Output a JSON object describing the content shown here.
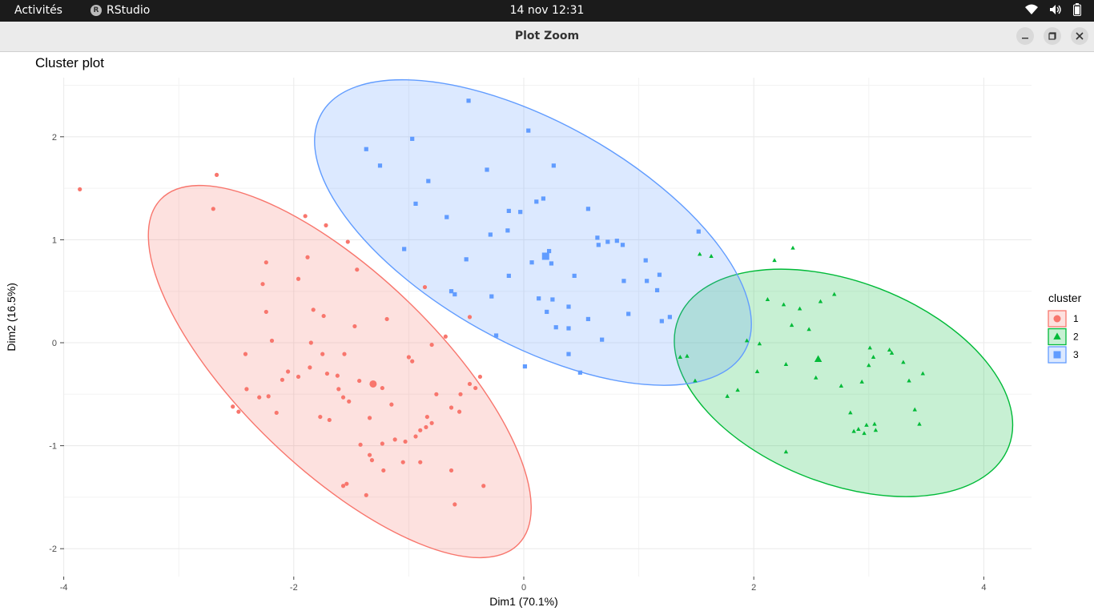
{
  "topbar": {
    "activities": "Activités",
    "app_name": "RStudio",
    "clock": "14 nov  12:31"
  },
  "window": {
    "title": "Plot Zoom"
  },
  "chart_data": {
    "type": "scatter",
    "title": "Cluster plot",
    "xlabel": "Dim1 (70.1%)",
    "ylabel": "Dim2 (16.5%)",
    "xlim": [
      -4.2,
      4.4
    ],
    "ylim": [
      -2.25,
      2.5
    ],
    "xticks": [
      -4,
      -2,
      0,
      2,
      4
    ],
    "yticks": [
      -2,
      -1,
      0,
      1,
      2
    ],
    "grid": true,
    "legend": {
      "title": "cluster",
      "position": "right",
      "entries": [
        "1",
        "2",
        "3"
      ]
    },
    "colors": {
      "1": "#F8766D",
      "2": "#00BA38",
      "3": "#619CFF"
    },
    "ellipses": [
      {
        "cluster": "1",
        "cx": -1.6,
        "cy": -0.28,
        "rx": 2.16,
        "ry": 0.95,
        "angle_deg": -43.9
      },
      {
        "cluster": "2",
        "cx": 2.78,
        "cy": -0.39,
        "rx": 1.54,
        "ry": 0.98,
        "angle_deg": -21.1
      },
      {
        "cluster": "3",
        "cx": 0.08,
        "cy": 1.07,
        "rx": 2.11,
        "ry": 1.07,
        "angle_deg": -29.3
      }
    ],
    "series": [
      {
        "name": "1",
        "shape": "circle",
        "center": [
          -1.31,
          -0.4
        ],
        "points": [
          [
            -3.86,
            1.49
          ],
          [
            -2.67,
            1.63
          ],
          [
            -2.7,
            1.3
          ],
          [
            -1.9,
            1.23
          ],
          [
            -1.72,
            1.14
          ],
          [
            -1.53,
            0.98
          ],
          [
            -2.24,
            0.78
          ],
          [
            -1.88,
            0.83
          ],
          [
            -1.45,
            0.71
          ],
          [
            -2.27,
            0.57
          ],
          [
            -1.96,
            0.62
          ],
          [
            -0.86,
            0.54
          ],
          [
            -1.83,
            0.32
          ],
          [
            -2.24,
            0.3
          ],
          [
            -1.74,
            0.26
          ],
          [
            -1.19,
            0.23
          ],
          [
            -0.47,
            0.25
          ],
          [
            -1.47,
            0.16
          ],
          [
            -0.68,
            0.06
          ],
          [
            -2.19,
            0.02
          ],
          [
            -1.85,
            0.0
          ],
          [
            -0.8,
            -0.02
          ],
          [
            -2.42,
            -0.11
          ],
          [
            -1.75,
            -0.11
          ],
          [
            -1.56,
            -0.11
          ],
          [
            -1.0,
            -0.14
          ],
          [
            -0.97,
            -0.18
          ],
          [
            -1.86,
            -0.24
          ],
          [
            -1.71,
            -0.3
          ],
          [
            -2.05,
            -0.28
          ],
          [
            -1.96,
            -0.33
          ],
          [
            -2.1,
            -0.36
          ],
          [
            -1.62,
            -0.32
          ],
          [
            -0.38,
            -0.33
          ],
          [
            -1.43,
            -0.37
          ],
          [
            -0.47,
            -0.4
          ],
          [
            -2.41,
            -0.45
          ],
          [
            -1.61,
            -0.45
          ],
          [
            -1.23,
            -0.44
          ],
          [
            -0.42,
            -0.44
          ],
          [
            -0.55,
            -0.5
          ],
          [
            -2.3,
            -0.53
          ],
          [
            -2.22,
            -0.52
          ],
          [
            -1.52,
            -0.57
          ],
          [
            -1.57,
            -0.53
          ],
          [
            -0.76,
            -0.5
          ],
          [
            -0.63,
            -0.63
          ],
          [
            -1.15,
            -0.6
          ],
          [
            -0.56,
            -0.67
          ],
          [
            -0.84,
            -0.72
          ],
          [
            -1.77,
            -0.72
          ],
          [
            -1.34,
            -0.73
          ],
          [
            -2.53,
            -0.62
          ],
          [
            -2.48,
            -0.67
          ],
          [
            -2.15,
            -0.68
          ],
          [
            -1.69,
            -0.75
          ],
          [
            -0.8,
            -0.78
          ],
          [
            -0.85,
            -0.82
          ],
          [
            -0.9,
            -0.85
          ],
          [
            -0.94,
            -0.91
          ],
          [
            -1.12,
            -0.94
          ],
          [
            -1.03,
            -0.96
          ],
          [
            -1.42,
            -0.99
          ],
          [
            -1.23,
            -0.98
          ],
          [
            -1.34,
            -1.09
          ],
          [
            -1.32,
            -1.14
          ],
          [
            -1.05,
            -1.16
          ],
          [
            -0.9,
            -1.16
          ],
          [
            -0.63,
            -1.24
          ],
          [
            -1.22,
            -1.24
          ],
          [
            -1.54,
            -1.37
          ],
          [
            -1.57,
            -1.39
          ],
          [
            -1.37,
            -1.48
          ],
          [
            -0.6,
            -1.57
          ],
          [
            -0.35,
            -1.39
          ]
        ]
      },
      {
        "name": "2",
        "shape": "triangle",
        "center": [
          2.56,
          -0.16
        ],
        "points": [
          [
            1.53,
            0.86
          ],
          [
            1.63,
            0.84
          ],
          [
            2.34,
            0.92
          ],
          [
            2.18,
            0.8
          ],
          [
            2.12,
            0.42
          ],
          [
            2.26,
            0.37
          ],
          [
            2.4,
            0.33
          ],
          [
            2.58,
            0.4
          ],
          [
            2.7,
            0.47
          ],
          [
            2.33,
            0.17
          ],
          [
            2.48,
            0.13
          ],
          [
            1.94,
            0.02
          ],
          [
            2.05,
            -0.01
          ],
          [
            1.42,
            -0.13
          ],
          [
            1.36,
            -0.14
          ],
          [
            3.01,
            -0.05
          ],
          [
            3.18,
            -0.07
          ],
          [
            3.2,
            -0.1
          ],
          [
            3.04,
            -0.14
          ],
          [
            3.3,
            -0.19
          ],
          [
            3.0,
            -0.22
          ],
          [
            2.28,
            -0.21
          ],
          [
            2.03,
            -0.28
          ],
          [
            3.47,
            -0.3
          ],
          [
            2.54,
            -0.34
          ],
          [
            1.49,
            -0.37
          ],
          [
            3.35,
            -0.37
          ],
          [
            2.94,
            -0.38
          ],
          [
            2.76,
            -0.42
          ],
          [
            1.86,
            -0.46
          ],
          [
            1.77,
            -0.52
          ],
          [
            3.4,
            -0.65
          ],
          [
            2.84,
            -0.68
          ],
          [
            3.05,
            -0.79
          ],
          [
            2.98,
            -0.8
          ],
          [
            3.06,
            -0.85
          ],
          [
            2.91,
            -0.84
          ],
          [
            3.44,
            -0.79
          ],
          [
            2.87,
            -0.86
          ],
          [
            2.96,
            -0.88
          ],
          [
            2.28,
            -1.06
          ]
        ]
      },
      {
        "name": "3",
        "shape": "square",
        "center": [
          0.19,
          0.84
        ],
        "points": [
          [
            -0.48,
            2.35
          ],
          [
            0.04,
            2.06
          ],
          [
            -0.97,
            1.98
          ],
          [
            -1.37,
            1.88
          ],
          [
            0.26,
            1.72
          ],
          [
            -1.25,
            1.72
          ],
          [
            -0.32,
            1.68
          ],
          [
            -0.83,
            1.57
          ],
          [
            0.17,
            1.4
          ],
          [
            0.11,
            1.37
          ],
          [
            -0.94,
            1.35
          ],
          [
            -0.13,
            1.28
          ],
          [
            -0.03,
            1.27
          ],
          [
            0.56,
            1.3
          ],
          [
            -0.67,
            1.22
          ],
          [
            -0.14,
            1.09
          ],
          [
            -0.29,
            1.05
          ],
          [
            0.64,
            1.02
          ],
          [
            0.81,
            0.99
          ],
          [
            0.73,
            0.98
          ],
          [
            0.65,
            0.95
          ],
          [
            0.86,
            0.95
          ],
          [
            1.52,
            1.08
          ],
          [
            -1.04,
            0.91
          ],
          [
            0.22,
            0.89
          ],
          [
            0.19,
            0.83
          ],
          [
            -0.5,
            0.81
          ],
          [
            1.06,
            0.8
          ],
          [
            0.07,
            0.78
          ],
          [
            0.24,
            0.77
          ],
          [
            -0.13,
            0.65
          ],
          [
            0.44,
            0.65
          ],
          [
            1.18,
            0.66
          ],
          [
            0.87,
            0.6
          ],
          [
            1.07,
            0.6
          ],
          [
            1.16,
            0.51
          ],
          [
            -0.63,
            0.5
          ],
          [
            -0.6,
            0.47
          ],
          [
            -0.28,
            0.45
          ],
          [
            0.13,
            0.43
          ],
          [
            0.25,
            0.42
          ],
          [
            0.39,
            0.35
          ],
          [
            0.2,
            0.3
          ],
          [
            0.91,
            0.28
          ],
          [
            1.27,
            0.25
          ],
          [
            0.56,
            0.23
          ],
          [
            1.2,
            0.21
          ],
          [
            0.28,
            0.15
          ],
          [
            0.39,
            0.14
          ],
          [
            -0.24,
            0.07
          ],
          [
            0.68,
            0.03
          ],
          [
            0.39,
            -0.11
          ],
          [
            0.01,
            -0.23
          ],
          [
            0.49,
            -0.29
          ]
        ]
      }
    ]
  }
}
